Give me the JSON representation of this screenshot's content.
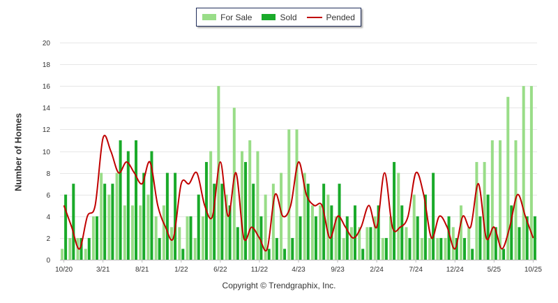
{
  "chart_data": {
    "type": "bar",
    "title": "",
    "xlabel": "",
    "ylabel": "Number of Homes",
    "ylim": [
      0,
      20
    ],
    "yticks": [
      0,
      2,
      4,
      6,
      8,
      10,
      12,
      14,
      16,
      18,
      20
    ],
    "grid": true,
    "legend_position": "top-center",
    "categories": [
      "10/20",
      "11/20",
      "12/20",
      "1/21",
      "2/21",
      "3/21",
      "4/21",
      "5/21",
      "6/21",
      "7/21",
      "8/21",
      "9/21",
      "10/21",
      "11/21",
      "12/21",
      "1/22",
      "2/22",
      "3/22",
      "4/22",
      "5/22",
      "6/22",
      "7/22",
      "8/22",
      "9/22",
      "10/22",
      "11/22",
      "12/22",
      "1/23",
      "2/23",
      "3/23",
      "4/23",
      "5/23",
      "6/23",
      "7/23",
      "8/23",
      "9/23",
      "10/23",
      "11/23",
      "12/23",
      "1/24",
      "2/24",
      "3/24",
      "4/24",
      "5/24",
      "6/24",
      "7/24",
      "8/24",
      "9/24",
      "10/24",
      "11/24",
      "12/24",
      "1/25",
      "2/25",
      "3/25",
      "4/25",
      "5/25",
      "6/25",
      "7/25",
      "8/25",
      "9/25",
      "10/25"
    ],
    "tick_labels": [
      {
        "index": 0,
        "label": "10/20"
      },
      {
        "index": 5,
        "label": "3/21"
      },
      {
        "index": 10,
        "label": "8/21"
      },
      {
        "index": 15,
        "label": "1/22"
      },
      {
        "index": 20,
        "label": "6/22"
      },
      {
        "index": 25,
        "label": "11/22"
      },
      {
        "index": 30,
        "label": "4/23"
      },
      {
        "index": 35,
        "label": "9/23"
      },
      {
        "index": 40,
        "label": "2/24"
      },
      {
        "index": 45,
        "label": "7/24"
      },
      {
        "index": 50,
        "label": "12/24"
      },
      {
        "index": 55,
        "label": "5/25"
      },
      {
        "index": 60,
        "label": "10/25"
      }
    ],
    "series": [
      {
        "name": "For Sale",
        "kind": "bar",
        "color": "#99dd88",
        "values": [
          1,
          2,
          2,
          1,
          4,
          8,
          6,
          8,
          5,
          5,
          5,
          6,
          4,
          5,
          3,
          3,
          4,
          2,
          4,
          10,
          16,
          6,
          14,
          10,
          11,
          10,
          6,
          7,
          8,
          12,
          12,
          8,
          5,
          5,
          6,
          4,
          2,
          3,
          3,
          3,
          4,
          2,
          4,
          8,
          3,
          6,
          2,
          2,
          2,
          2,
          3,
          5,
          3,
          9,
          9,
          11,
          11,
          15,
          11,
          16,
          16
        ]
      },
      {
        "name": "Sold",
        "kind": "bar",
        "color": "#1aaa2a",
        "values": [
          6,
          7,
          2,
          2,
          4,
          7,
          7,
          11,
          10,
          11,
          8,
          10,
          2,
          8,
          8,
          1,
          4,
          6,
          9,
          7,
          7,
          5,
          3,
          9,
          7,
          4,
          1,
          2,
          1,
          2,
          4,
          7,
          4,
          7,
          5,
          7,
          4,
          5,
          1,
          3,
          5,
          2,
          9,
          5,
          2,
          4,
          6,
          8,
          2,
          4,
          2,
          2,
          1,
          4,
          6,
          3,
          1,
          5,
          3,
          4,
          4
        ]
      },
      {
        "name": "Pended",
        "kind": "line",
        "color": "#c00000",
        "values": [
          5,
          3,
          1,
          4,
          5,
          11.2,
          10,
          8,
          9,
          8,
          7,
          9,
          5,
          3,
          2,
          7,
          7,
          8,
          5,
          4,
          9,
          4,
          8,
          2,
          3,
          2,
          1,
          6,
          4,
          5,
          9,
          6,
          5,
          5,
          2,
          4,
          3,
          2,
          3,
          5,
          3,
          8,
          3,
          3,
          4,
          8,
          6,
          2,
          4,
          3,
          1,
          4,
          3,
          7,
          2,
          3,
          1,
          3,
          6,
          4,
          2
        ]
      }
    ]
  },
  "legend": {
    "for_sale": "For Sale",
    "sold": "Sold",
    "pended": "Pended"
  },
  "footer": {
    "copyright": "Copyright © Trendgraphix, Inc."
  }
}
